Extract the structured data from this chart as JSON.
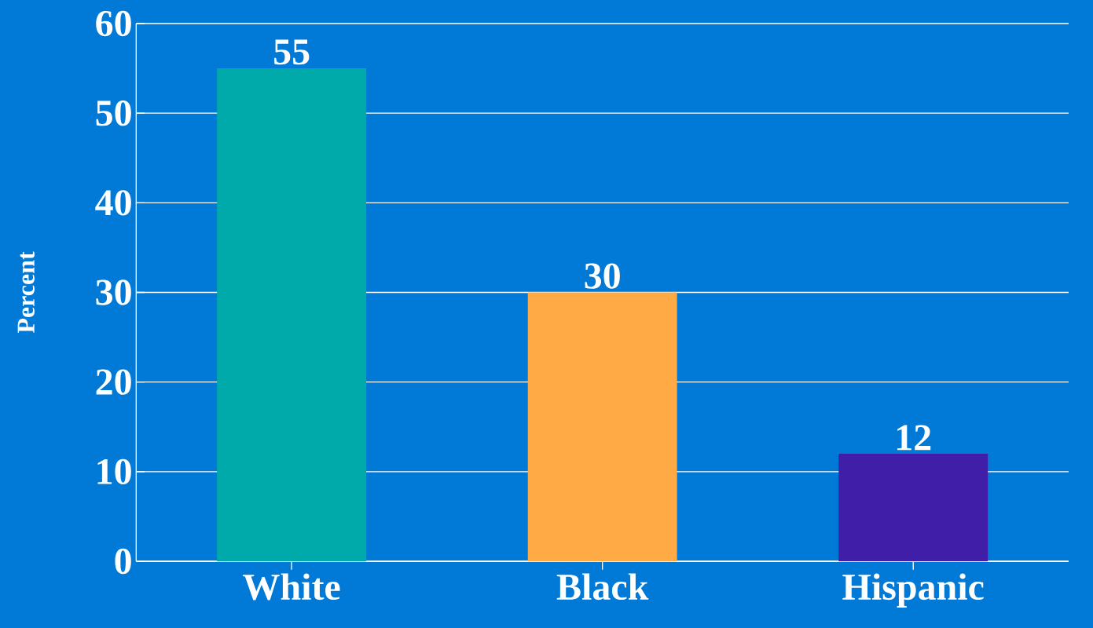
{
  "chart_data": {
    "type": "bar",
    "ylabel": "Percent",
    "categories": [
      "White",
      "Black",
      "Hispanic"
    ],
    "values": [
      55,
      30,
      12
    ],
    "colors": [
      "#00aaaa",
      "#ffaa44",
      "#401ea8"
    ],
    "ylim": [
      0,
      60
    ],
    "yticks": [
      0,
      10,
      20,
      30,
      40,
      50,
      60
    ],
    "grid": "y",
    "data_labels": true
  }
}
